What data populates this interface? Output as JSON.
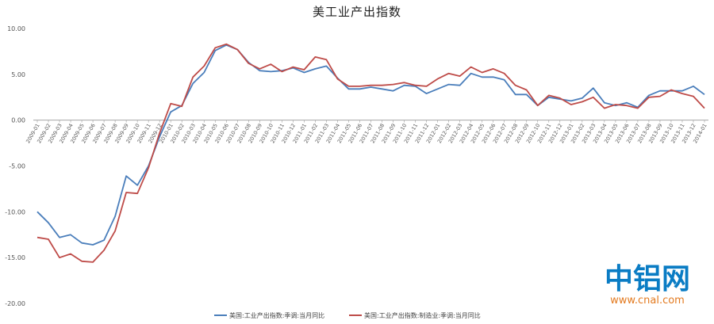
{
  "chart_data": {
    "type": "line",
    "title": "美工业产出指数",
    "ylim": [
      -20,
      10
    ],
    "y_ticks": [
      "10.00",
      "5.00",
      "0.00",
      "-5.00",
      "-10.00",
      "-15.00",
      "-20.00"
    ],
    "x": [
      "2009-01",
      "2009-02",
      "2009-03",
      "2009-04",
      "2009-05",
      "2009-06",
      "2009-07",
      "2009-08",
      "2009-09",
      "2009-10",
      "2009-11",
      "2009-12",
      "2010-01",
      "2010-02",
      "2010-03",
      "2010-04",
      "2010-05",
      "2010-06",
      "2010-07",
      "2010-08",
      "2010-09",
      "2010-10",
      "2010-11",
      "2010-12",
      "2011-01",
      "2011-02",
      "2011-03",
      "2011-04",
      "2011-05",
      "2011-06",
      "2011-07",
      "2011-08",
      "2011-09",
      "2011-10",
      "2011-11",
      "2011-12",
      "2012-01",
      "2012-02",
      "2012-03",
      "2012-04",
      "2012-05",
      "2012-06",
      "2012-07",
      "2012-08",
      "2012-09",
      "2012-10",
      "2012-11",
      "2012-12",
      "2013-01",
      "2013-02",
      "2013-03",
      "2013-04",
      "2013-05",
      "2013-06",
      "2013-07",
      "2013-08",
      "2013-09",
      "2013-10",
      "2013-11",
      "2013-12",
      "2014-01"
    ],
    "series": [
      {
        "name": "美国:工业产出指数:季调:当月同比",
        "color": "#4a7ebb",
        "values": [
          -10.0,
          -11.2,
          -12.8,
          -12.5,
          -13.4,
          -13.6,
          -13.1,
          -10.5,
          -6.1,
          -7.1,
          -5.0,
          -1.8,
          0.9,
          1.6,
          4.0,
          5.2,
          7.6,
          8.2,
          7.7,
          6.3,
          5.4,
          5.3,
          5.4,
          5.7,
          5.2,
          5.6,
          5.9,
          4.6,
          3.4,
          3.4,
          3.6,
          3.4,
          3.2,
          3.8,
          3.7,
          2.9,
          3.4,
          3.9,
          3.8,
          5.1,
          4.7,
          4.7,
          4.4,
          2.8,
          2.8,
          1.6,
          2.5,
          2.3,
          2.1,
          2.4,
          3.5,
          1.9,
          1.6,
          1.9,
          1.4,
          2.7,
          3.2,
          3.2,
          3.2,
          3.7,
          2.8
        ]
      },
      {
        "name": "美国:工业产出指数:制造业:季调:当月同比",
        "color": "#be4b48",
        "values": [
          -12.8,
          -13.0,
          -15.0,
          -14.6,
          -15.4,
          -15.5,
          -14.2,
          -12.1,
          -7.9,
          -8.0,
          -5.2,
          -1.4,
          1.8,
          1.5,
          4.7,
          5.9,
          7.9,
          8.3,
          7.7,
          6.2,
          5.6,
          6.1,
          5.3,
          5.8,
          5.5,
          6.9,
          6.6,
          4.5,
          3.7,
          3.7,
          3.8,
          3.8,
          3.9,
          4.1,
          3.8,
          3.7,
          4.5,
          5.1,
          4.8,
          5.8,
          5.2,
          5.6,
          5.1,
          3.8,
          3.3,
          1.6,
          2.7,
          2.4,
          1.7,
          2.0,
          2.5,
          1.3,
          1.7,
          1.6,
          1.3,
          2.5,
          2.6,
          3.3,
          2.9,
          2.6,
          1.3
        ]
      }
    ],
    "grid": false,
    "legend_position": "bottom"
  },
  "watermark": {
    "main": "中铝网",
    "sub": "www.cnal.com",
    "color_main": "#0a7cc4",
    "color_sub": "#e37a1f"
  }
}
